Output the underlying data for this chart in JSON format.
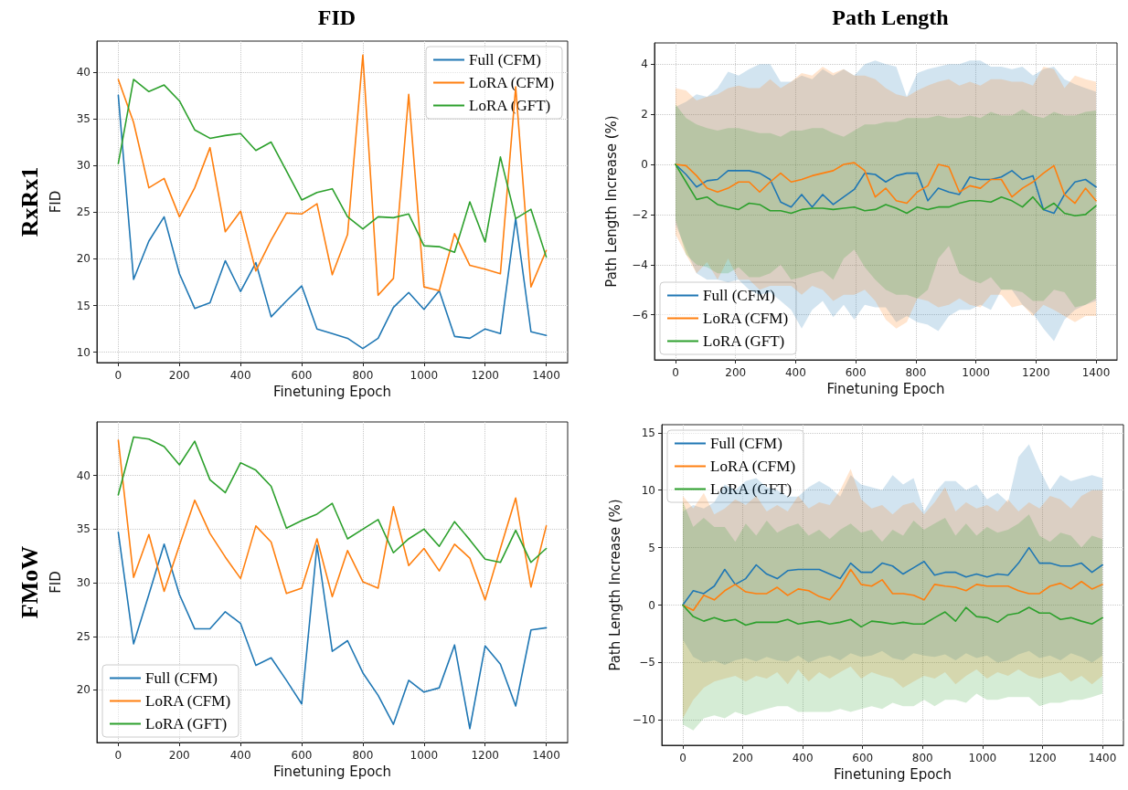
{
  "chart_data": [
    {
      "type": "line",
      "title": "FID",
      "annotations": [
        "RxRx1"
      ],
      "xlabel": "Finetuning Epoch",
      "ylabel": "FID",
      "x": [
        0,
        50,
        100,
        150,
        200,
        250,
        300,
        350,
        400,
        450,
        500,
        550,
        600,
        650,
        700,
        750,
        800,
        850,
        900,
        950,
        1000,
        1050,
        1100,
        1150,
        1200,
        1250,
        1300,
        1350,
        1400
      ],
      "xlim": [
        -70,
        1470
      ],
      "xticks": [
        0,
        200,
        400,
        600,
        800,
        1000,
        1200,
        1400
      ],
      "ylim": [
        8.9,
        43.3
      ],
      "yticks": [
        10,
        15,
        20,
        25,
        30,
        35,
        40
      ],
      "grid": true,
      "legend": "top right",
      "marker": "none",
      "line_style": "solid",
      "series": [
        {
          "name": "Full (CFM)",
          "color": "#1f77b4",
          "values": [
            37.5,
            17.8,
            21.9,
            24.5,
            18.4,
            14.7,
            15.3,
            19.8,
            16.5,
            19.6,
            13.8,
            15.5,
            17.1,
            12.5,
            12.0,
            11.5,
            10.4,
            11.5,
            14.8,
            16.4,
            14.6,
            16.6,
            11.7,
            11.5,
            12.5,
            12.0,
            24.3,
            12.2,
            11.8
          ]
        },
        {
          "name": "LoRA (CFM)",
          "color": "#ff7f0e",
          "values": [
            39.2,
            34.6,
            27.6,
            28.6,
            24.5,
            27.6,
            31.9,
            22.9,
            25.1,
            18.7,
            22.0,
            24.9,
            24.8,
            25.9,
            18.3,
            22.6,
            41.8,
            16.1,
            17.9,
            37.6,
            17.0,
            16.6,
            22.7,
            19.3,
            18.9,
            18.4,
            38.4,
            17.0,
            20.9
          ]
        },
        {
          "name": "LoRA (GFT)",
          "color": "#2ca02c",
          "values": [
            30.2,
            39.2,
            37.9,
            38.6,
            36.9,
            33.8,
            32.9,
            33.2,
            33.4,
            31.6,
            32.5,
            29.4,
            26.3,
            27.1,
            27.5,
            24.5,
            23.2,
            24.5,
            24.4,
            24.8,
            21.4,
            21.3,
            20.7,
            26.1,
            21.8,
            30.9,
            24.3,
            25.3,
            20.2
          ]
        }
      ]
    },
    {
      "type": "line",
      "title": "Path Length",
      "xlabel": "Finetuning Epoch",
      "ylabel": "Path Length Increase (%)",
      "x": [
        0,
        35,
        70,
        105,
        140,
        175,
        210,
        245,
        280,
        315,
        350,
        385,
        420,
        455,
        490,
        525,
        560,
        595,
        630,
        665,
        700,
        735,
        770,
        805,
        840,
        875,
        910,
        945,
        980,
        1015,
        1050,
        1085,
        1120,
        1155,
        1190,
        1225,
        1260,
        1295,
        1330,
        1365,
        1400
      ],
      "xlim": [
        -70,
        1470
      ],
      "xticks": [
        0,
        200,
        400,
        600,
        800,
        1000,
        1200,
        1400
      ],
      "ylim": [
        -7.8,
        4.85
      ],
      "yticks": [
        -6,
        -4,
        -2,
        0,
        2,
        4
      ],
      "grid": true,
      "legend": "bottom left",
      "marker": "none",
      "line_style": "solid",
      "series": [
        {
          "name": "Full (CFM)",
          "color": "#1f77b4",
          "values": [
            0,
            -0.4,
            -0.9,
            -0.65,
            -0.6,
            -0.25,
            -0.25,
            -0.25,
            -0.35,
            -0.6,
            -1.5,
            -1.7,
            -1.2,
            -1.7,
            -1.2,
            -1.6,
            -1.3,
            -1.0,
            -0.35,
            -0.4,
            -0.7,
            -0.45,
            -0.35,
            -0.35,
            -1.45,
            -0.95,
            -1.1,
            -1.2,
            -0.5,
            -0.6,
            -0.6,
            -0.5,
            -0.25,
            -0.6,
            -0.45,
            -1.8,
            -1.95,
            -1.2,
            -0.7,
            -0.6,
            -0.9
          ],
          "upper": [
            2.3,
            2.5,
            2.8,
            2.7,
            3.05,
            3.7,
            3.55,
            3.8,
            4.0,
            4.0,
            3.3,
            3.3,
            3.55,
            3.4,
            3.8,
            3.55,
            3.8,
            3.55,
            4.0,
            4.15,
            4.0,
            3.9,
            2.7,
            3.65,
            3.8,
            3.9,
            4.0,
            4.0,
            4.15,
            4.15,
            3.9,
            3.9,
            3.8,
            3.9,
            3.55,
            3.8,
            3.9,
            3.4,
            3.2,
            3.05,
            2.9
          ],
          "lower": [
            -2.4,
            -3.4,
            -4.35,
            -4.6,
            -4.6,
            -4.7,
            -4.6,
            -5.0,
            -5.2,
            -5.1,
            -5.45,
            -5.8,
            -6.55,
            -5.8,
            -5.45,
            -6.1,
            -5.6,
            -6.2,
            -5.6,
            -5.7,
            -5.7,
            -6.3,
            -6.05,
            -6.3,
            -6.4,
            -6.65,
            -6.05,
            -5.8,
            -5.8,
            -5.6,
            -5.8,
            -5.0,
            -5.0,
            -5.6,
            -5.95,
            -6.55,
            -7.05,
            -6.2,
            -5.8,
            -5.6,
            -5.45
          ]
        },
        {
          "name": "LoRA (CFM)",
          "color": "#ff7f0e",
          "values": [
            0,
            -0.05,
            -0.45,
            -0.95,
            -1.1,
            -0.95,
            -0.7,
            -0.7,
            -1.1,
            -0.7,
            -0.35,
            -0.7,
            -0.6,
            -0.45,
            -0.35,
            -0.25,
            0.0,
            0.07,
            -0.25,
            -1.3,
            -0.95,
            -1.45,
            -1.55,
            -1.1,
            -0.85,
            0.0,
            -0.1,
            -1.1,
            -0.85,
            -0.95,
            -0.6,
            -0.6,
            -1.3,
            -0.95,
            -0.7,
            -0.35,
            -0.05,
            -1.2,
            -1.55,
            -0.95,
            -1.45
          ],
          "upper": [
            3.05,
            2.95,
            2.55,
            2.7,
            2.8,
            3.05,
            3.15,
            3.05,
            3.05,
            3.4,
            3.05,
            3.3,
            3.65,
            3.55,
            3.9,
            3.65,
            3.8,
            3.55,
            3.55,
            3.4,
            3.05,
            2.8,
            2.7,
            2.95,
            3.15,
            3.3,
            3.4,
            3.15,
            3.3,
            3.15,
            3.4,
            3.4,
            3.3,
            3.3,
            3.15,
            3.9,
            3.8,
            3.05,
            3.55,
            3.4,
            3.3
          ],
          "lower": [
            -2.8,
            -3.6,
            -4.35,
            -3.9,
            -4.6,
            -3.75,
            -4.6,
            -4.6,
            -5.0,
            -4.85,
            -4.85,
            -4.85,
            -5.2,
            -4.85,
            -5.0,
            -5.45,
            -5.2,
            -5.2,
            -5.0,
            -5.45,
            -6.2,
            -6.55,
            -6.3,
            -5.35,
            -5.45,
            -5.7,
            -5.6,
            -5.35,
            -5.6,
            -5.7,
            -5.2,
            -5.2,
            -5.7,
            -5.6,
            -6.05,
            -5.6,
            -5.8,
            -6.05,
            -6.3,
            -6.05,
            -6.05
          ]
        },
        {
          "name": "LoRA (GFT)",
          "color": "#2ca02c",
          "values": [
            0,
            -0.7,
            -1.4,
            -1.3,
            -1.6,
            -1.7,
            -1.8,
            -1.55,
            -1.6,
            -1.85,
            -1.85,
            -1.95,
            -1.8,
            -1.75,
            -1.75,
            -1.8,
            -1.75,
            -1.7,
            -1.85,
            -1.8,
            -1.6,
            -1.75,
            -1.95,
            -1.7,
            -1.8,
            -1.7,
            -1.7,
            -1.55,
            -1.45,
            -1.45,
            -1.5,
            -1.3,
            -1.45,
            -1.7,
            -1.3,
            -1.8,
            -1.55,
            -1.95,
            -2.05,
            -2.0,
            -1.65
          ],
          "upper": [
            2.4,
            1.85,
            1.6,
            1.45,
            1.35,
            1.45,
            1.45,
            1.35,
            1.25,
            1.25,
            1.1,
            1.35,
            1.35,
            1.45,
            1.45,
            1.25,
            1.1,
            1.35,
            1.6,
            1.6,
            1.7,
            1.7,
            1.85,
            1.85,
            1.85,
            1.95,
            1.85,
            1.85,
            1.95,
            1.85,
            2.1,
            1.95,
            1.95,
            2.2,
            1.95,
            1.85,
            2.1,
            1.95,
            1.95,
            2.1,
            2.15
          ],
          "lower": [
            -2.2,
            -3.6,
            -4.0,
            -4.1,
            -4.35,
            -4.35,
            -4.1,
            -4.5,
            -4.5,
            -4.35,
            -4.0,
            -4.6,
            -4.5,
            -4.35,
            -4.25,
            -4.6,
            -3.75,
            -3.4,
            -4.1,
            -4.6,
            -5.0,
            -5.2,
            -5.2,
            -5.35,
            -5.0,
            -3.75,
            -3.25,
            -4.35,
            -4.6,
            -4.75,
            -4.5,
            -5.0,
            -5.0,
            -5.1,
            -5.45,
            -5.45,
            -5.0,
            -5.1,
            -5.7,
            -5.6,
            -5.35
          ]
        }
      ]
    },
    {
      "type": "line",
      "annotations": [
        "FMoW"
      ],
      "xlabel": "Finetuning Epoch",
      "ylabel": "FID",
      "x": [
        0,
        50,
        100,
        150,
        200,
        250,
        300,
        350,
        400,
        450,
        500,
        550,
        600,
        650,
        700,
        750,
        800,
        850,
        900,
        950,
        1000,
        1050,
        1100,
        1150,
        1200,
        1250,
        1300,
        1350,
        1400
      ],
      "xlim": [
        -70,
        1470
      ],
      "xticks": [
        0,
        200,
        400,
        600,
        800,
        1000,
        1200,
        1400
      ],
      "ylim": [
        15.1,
        45.0
      ],
      "yticks": [
        20,
        25,
        30,
        35,
        40
      ],
      "grid": true,
      "legend": "bottom left",
      "marker": "none",
      "line_style": "solid",
      "series": [
        {
          "name": "Full (CFM)",
          "color": "#1f77b4",
          "values": [
            34.7,
            24.3,
            28.9,
            33.6,
            28.9,
            25.7,
            25.7,
            27.3,
            26.2,
            22.3,
            23.0,
            20.9,
            18.7,
            33.5,
            23.6,
            24.6,
            21.6,
            19.5,
            16.8,
            20.9,
            19.8,
            20.2,
            24.2,
            16.4,
            24.1,
            22.4,
            18.5,
            25.6,
            25.8
          ]
        },
        {
          "name": "LoRA (CFM)",
          "color": "#ff7f0e",
          "values": [
            43.3,
            30.5,
            34.5,
            29.2,
            33.5,
            37.7,
            34.6,
            32.4,
            30.4,
            35.3,
            33.8,
            29.0,
            29.5,
            34.1,
            28.7,
            33.0,
            30.1,
            29.5,
            37.1,
            31.6,
            33.2,
            31.1,
            33.6,
            32.3,
            28.4,
            33.2,
            37.9,
            29.6,
            35.3
          ]
        },
        {
          "name": "LoRA (GFT)",
          "color": "#2ca02c",
          "values": [
            38.2,
            43.6,
            43.4,
            42.7,
            41.0,
            43.2,
            39.6,
            38.4,
            41.2,
            40.5,
            39.0,
            35.1,
            35.8,
            36.4,
            37.4,
            34.1,
            35.0,
            35.9,
            32.8,
            34.1,
            35.0,
            33.4,
            35.7,
            34.0,
            32.2,
            31.9,
            34.9,
            31.9,
            33.2
          ]
        }
      ]
    },
    {
      "type": "line",
      "xlabel": "Finetuning Epoch",
      "ylabel": "Path Length Increase (%)",
      "x": [
        0,
        35,
        70,
        105,
        140,
        175,
        210,
        245,
        280,
        315,
        350,
        385,
        420,
        455,
        490,
        525,
        560,
        595,
        630,
        665,
        700,
        735,
        770,
        805,
        840,
        875,
        910,
        945,
        980,
        1015,
        1050,
        1085,
        1120,
        1155,
        1190,
        1225,
        1260,
        1295,
        1330,
        1365,
        1400
      ],
      "xlim": [
        -70,
        1470
      ],
      "xticks": [
        0,
        200,
        400,
        600,
        800,
        1000,
        1200,
        1400
      ],
      "ylim": [
        -12.2,
        15.7
      ],
      "yticks": [
        -10,
        -5,
        0,
        5,
        10,
        15
      ],
      "grid": true,
      "legend": "top left",
      "marker": "none",
      "line_style": "solid",
      "series": [
        {
          "name": "Full (CFM)",
          "color": "#1f77b4",
          "values": [
            0,
            1.25,
            1.0,
            1.65,
            3.1,
            1.8,
            2.3,
            3.5,
            2.7,
            2.3,
            3.0,
            3.1,
            3.1,
            3.1,
            2.7,
            2.3,
            3.65,
            2.85,
            2.85,
            3.65,
            3.4,
            2.7,
            3.25,
            3.8,
            2.6,
            2.85,
            2.85,
            2.45,
            2.7,
            2.45,
            2.7,
            2.6,
            3.65,
            5.0,
            3.65,
            3.65,
            3.4,
            3.4,
            3.65,
            2.85,
            3.5
          ],
          "upper": [
            8.15,
            8.7,
            8.4,
            8.95,
            10.5,
            10.0,
            10.8,
            11.05,
            10.25,
            10.0,
            9.45,
            9.45,
            10.25,
            10.8,
            10.25,
            9.45,
            11.3,
            10.5,
            10.25,
            10.0,
            11.3,
            10.5,
            11.05,
            8.15,
            9.75,
            10.8,
            10.8,
            10.0,
            10.5,
            9.2,
            9.75,
            8.95,
            12.9,
            14.0,
            11.85,
            10.0,
            11.3,
            10.8,
            11.05,
            11.3,
            11.05
          ],
          "lower": [
            -3.0,
            -4.5,
            -5.0,
            -4.8,
            -5.2,
            -4.8,
            -4.6,
            -4.9,
            -4.5,
            -4.8,
            -4.9,
            -4.4,
            -5.0,
            -4.6,
            -4.4,
            -4.8,
            -4.2,
            -4.5,
            -4.4,
            -4.0,
            -4.6,
            -4.8,
            -4.2,
            -4.4,
            -4.5,
            -4.3,
            -4.8,
            -4.2,
            -4.6,
            -4.4,
            -5.0,
            -4.8,
            -4.3,
            -4.0,
            -4.6,
            -4.4,
            -4.8,
            -4.2,
            -4.5,
            -5.0,
            -4.4
          ]
        },
        {
          "name": "LoRA (CFM)",
          "color": "#ff7f0e",
          "values": [
            0,
            -0.45,
            0.85,
            0.45,
            1.25,
            1.8,
            1.15,
            1.0,
            1.0,
            1.55,
            0.85,
            1.4,
            1.25,
            0.75,
            0.45,
            1.55,
            3.1,
            1.8,
            1.65,
            2.2,
            1.0,
            1.0,
            0.85,
            0.45,
            1.8,
            1.65,
            1.55,
            1.25,
            1.8,
            1.65,
            1.65,
            1.65,
            1.25,
            1.0,
            1.0,
            1.65,
            1.9,
            1.4,
            2.05,
            1.4,
            1.8
          ],
          "upper": [
            9.5,
            8.4,
            9.75,
            7.9,
            8.4,
            9.2,
            8.7,
            9.5,
            8.15,
            8.7,
            8.15,
            9.5,
            8.4,
            8.95,
            8.7,
            10.0,
            11.85,
            9.2,
            8.4,
            8.7,
            7.9,
            8.7,
            8.95,
            7.9,
            8.95,
            10.25,
            8.15,
            8.95,
            8.4,
            8.7,
            8.15,
            9.2,
            8.15,
            8.95,
            8.4,
            9.5,
            9.2,
            8.4,
            9.5,
            10.0,
            10.0
          ],
          "lower": [
            -9.85,
            -8.25,
            -7.2,
            -6.65,
            -6.4,
            -6.15,
            -6.65,
            -6.15,
            -6.4,
            -5.85,
            -6.9,
            -5.6,
            -6.65,
            -5.85,
            -6.4,
            -5.85,
            -5.35,
            -6.4,
            -5.85,
            -6.15,
            -6.4,
            -7.2,
            -6.65,
            -6.15,
            -6.4,
            -5.85,
            -6.9,
            -6.15,
            -5.6,
            -6.4,
            -5.85,
            -6.15,
            -5.6,
            -6.15,
            -6.4,
            -6.15,
            -5.85,
            -6.65,
            -6.15,
            -6.9,
            -6.15
          ]
        },
        {
          "name": "LoRA (GFT)",
          "color": "#2ca02c",
          "values": [
            0,
            -1.0,
            -1.4,
            -1.1,
            -1.4,
            -1.25,
            -1.75,
            -1.5,
            -1.5,
            -1.5,
            -1.25,
            -1.65,
            -1.5,
            -1.4,
            -1.65,
            -1.5,
            -1.25,
            -1.9,
            -1.4,
            -1.5,
            -1.65,
            -1.5,
            -1.65,
            -1.65,
            -1.1,
            -0.6,
            -1.4,
            -0.2,
            -1.0,
            -1.1,
            -1.5,
            -0.85,
            -0.7,
            -0.2,
            -0.7,
            -0.7,
            -1.25,
            -1.1,
            -1.4,
            -1.65,
            -1.1
          ],
          "upper": [
            9.0,
            6.8,
            7.6,
            6.8,
            6.8,
            5.5,
            7.1,
            6.05,
            7.35,
            6.3,
            6.8,
            7.1,
            6.05,
            6.55,
            5.75,
            6.55,
            7.1,
            6.3,
            6.55,
            5.5,
            6.55,
            6.05,
            7.35,
            6.55,
            7.1,
            7.6,
            6.05,
            7.1,
            6.05,
            6.8,
            6.3,
            6.55,
            7.1,
            7.9,
            6.05,
            5.5,
            6.3,
            6.05,
            5.0,
            6.05,
            5.75
          ],
          "lower": [
            -10.4,
            -10.9,
            -9.85,
            -9.6,
            -9.85,
            -9.3,
            -9.6,
            -9.3,
            -9.05,
            -8.8,
            -8.8,
            -9.3,
            -9.3,
            -9.3,
            -9.3,
            -9.05,
            -9.3,
            -9.05,
            -8.8,
            -9.05,
            -8.5,
            -8.8,
            -8.8,
            -8.25,
            -8.8,
            -8.25,
            -8.25,
            -8.5,
            -7.7,
            -8.25,
            -8.25,
            -8.0,
            -8.0,
            -8.0,
            -8.8,
            -8.5,
            -8.5,
            -8.25,
            -8.25,
            -8.0,
            -7.7
          ]
        }
      ]
    }
  ]
}
